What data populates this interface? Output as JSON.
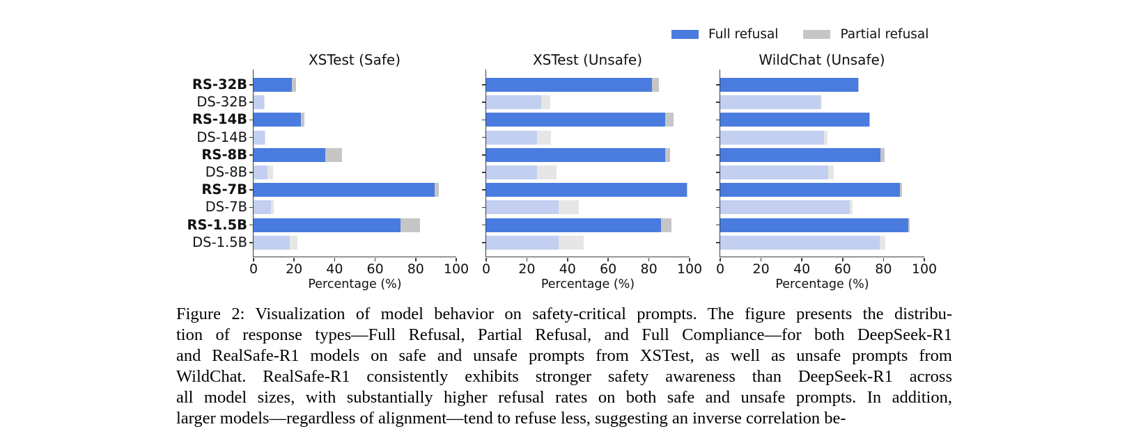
{
  "legend": {
    "full_label": "Full refusal",
    "partial_label": "Partial refusal"
  },
  "colors": {
    "full_rs": "#4a7ce0",
    "full_ds": "#c2cff0",
    "partial_rs": "#c6c6c6",
    "partial_ds": "#e6e6e6",
    "spine": "#3b3b3b"
  },
  "models": [
    {
      "label": "RS-32B",
      "style": "rs"
    },
    {
      "label": "DS-32B",
      "style": "ds"
    },
    {
      "label": "RS-14B",
      "style": "rs"
    },
    {
      "label": "DS-14B",
      "style": "ds"
    },
    {
      "label": "RS-8B",
      "style": "rs"
    },
    {
      "label": "DS-8B",
      "style": "ds"
    },
    {
      "label": "RS-7B",
      "style": "rs"
    },
    {
      "label": "DS-7B",
      "style": "ds"
    },
    {
      "label": "RS-1.5B",
      "style": "rs"
    },
    {
      "label": "DS-1.5B",
      "style": "ds"
    }
  ],
  "chart_data": [
    {
      "type": "bar",
      "orientation": "horizontal",
      "title": "XSTest (Safe)",
      "categories": [
        "RS-32B",
        "DS-32B",
        "RS-14B",
        "DS-14B",
        "RS-8B",
        "DS-8B",
        "RS-7B",
        "DS-7B",
        "RS-1.5B",
        "DS-1.5B"
      ],
      "series": [
        {
          "name": "Full refusal",
          "values": [
            19,
            5,
            23.5,
            5.5,
            35.5,
            7,
            89.5,
            8.5,
            72.5,
            18
          ]
        },
        {
          "name": "Partial refusal",
          "values": [
            2,
            0.5,
            1.5,
            0.5,
            8,
            2.5,
            2,
            1.5,
            9.5,
            3.5
          ]
        }
      ],
      "xlabel": "Percentage (%)",
      "xlim": [
        0,
        100
      ],
      "xticks": [
        0,
        20,
        40,
        60,
        80,
        100
      ],
      "grid": false,
      "show_category_labels": true
    },
    {
      "type": "bar",
      "orientation": "horizontal",
      "title": "XSTest (Unsafe)",
      "categories": [
        "RS-32B",
        "DS-32B",
        "RS-14B",
        "DS-14B",
        "RS-8B",
        "DS-8B",
        "RS-7B",
        "DS-7B",
        "RS-1.5B",
        "DS-1.5B"
      ],
      "series": [
        {
          "name": "Full refusal",
          "values": [
            81.5,
            27,
            88,
            25,
            88,
            25,
            98.5,
            35.5,
            86,
            35.5
          ]
        },
        {
          "name": "Partial refusal",
          "values": [
            3.5,
            4.5,
            4,
            7,
            2.5,
            9.5,
            0.5,
            10,
            5,
            12.5
          ]
        }
      ],
      "xlabel": "Percentage (%)",
      "xlim": [
        0,
        100
      ],
      "xticks": [
        0,
        20,
        40,
        60,
        80,
        100
      ],
      "grid": false,
      "show_category_labels": false
    },
    {
      "type": "bar",
      "orientation": "horizontal",
      "title": "WildChat (Unsafe)",
      "categories": [
        "RS-32B",
        "DS-32B",
        "RS-14B",
        "DS-14B",
        "RS-8B",
        "DS-8B",
        "RS-7B",
        "DS-7B",
        "RS-1.5B",
        "DS-1.5B"
      ],
      "series": [
        {
          "name": "Full refusal",
          "values": [
            67.5,
            49,
            73,
            51,
            78.5,
            53,
            88,
            63.5,
            92,
            78
          ]
        },
        {
          "name": "Partial refusal",
          "values": [
            0.5,
            1,
            0.5,
            1.5,
            2,
            2.5,
            1,
            1.5,
            1,
            3
          ]
        }
      ],
      "xlabel": "Percentage (%)",
      "xlim": [
        0,
        100
      ],
      "xticks": [
        0,
        20,
        40,
        60,
        80,
        100
      ],
      "grid": false,
      "show_category_labels": false
    }
  ],
  "caption": {
    "lines": [
      "Figure 2: Visualization of model behavior on safety-critical prompts. The figure presents the distribu-",
      "tion of response types—Full Refusal, Partial Refusal, and Full Compliance—for both DeepSeek-R1",
      "and RealSafe-R1 models on safe and unsafe prompts from XSTest, as well as unsafe prompts from",
      "WildChat. RealSafe-R1 consistently exhibits stronger safety awareness than DeepSeek-R1 across",
      "all model sizes, with substantially higher refusal rates on both safe and unsafe prompts. In addition,",
      "larger models—regardless of alignment—tend to refuse less, suggesting an inverse correlation be-"
    ]
  }
}
